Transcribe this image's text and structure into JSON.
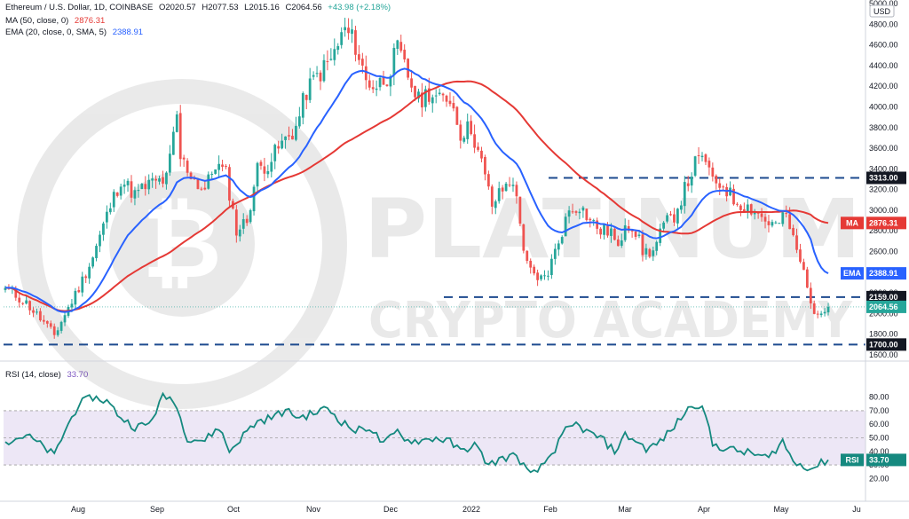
{
  "header": {
    "symbol": "Ethereum / U.S. Dollar, 1D, COINBASE",
    "open": "O2020.57",
    "high": "H2077.53",
    "low": "L2015.16",
    "close": "C2064.56",
    "change": "+43.98 (+2.18%)",
    "ma_label": "MA (50, close, 0)",
    "ma_value": "2876.31",
    "ema_label": "EMA (20, close, 0, SMA, 5)",
    "ema_value": "2388.91",
    "rsi_label": "RSI (14, close)",
    "rsi_value": "33.70",
    "currency": "USD"
  },
  "colors": {
    "up": "#26a69a",
    "down": "#ef5350",
    "ma": "#e53935",
    "ema": "#2962ff",
    "rsi": "#15897f",
    "rsi_band": "#ede7f6",
    "level": "#1e4b8f"
  },
  "watermark": {
    "line1": "PLATINUM",
    "line2": "CRYPTO ACADEMY",
    "logo": "bitcoin-logo"
  },
  "chart_data": {
    "type": "candlestick",
    "timeframe": "1D",
    "x_axis_labels": [
      "Aug",
      "Sep",
      "Oct",
      "Nov",
      "Dec",
      "2022",
      "Feb",
      "Mar",
      "Apr",
      "May",
      "Ju"
    ],
    "price_axis": {
      "ylim": [
        1600,
        5000
      ],
      "ticks": [
        1600,
        1800,
        2000,
        2200,
        2400,
        2600,
        2800,
        3000,
        3200,
        3400,
        3600,
        3800,
        4000,
        4200,
        4400,
        4600,
        4800,
        5000
      ],
      "tick_labels": [
        "1600.00",
        "1800.00",
        "2000.00",
        "2200.00",
        "2400.00",
        "2600.00",
        "2800.00",
        "3000.00",
        "3200.00",
        "3400.00",
        "3600.00",
        "3800.00",
        "4000.00",
        "4200.00",
        "4400.00",
        "4600.00",
        "4800.00",
        "5000.00"
      ]
    },
    "rsi_axis": {
      "ylim": [
        15,
        85
      ],
      "ticks": [
        20,
        30,
        40,
        50,
        60,
        70,
        80
      ],
      "tick_labels": [
        "20.00",
        "30.00",
        "40.00",
        "50.00",
        "60.00",
        "70.00",
        "80.00"
      ],
      "band": [
        30,
        70
      ]
    },
    "levels": [
      {
        "value": 3313,
        "label": "3313.00"
      },
      {
        "value": 2159,
        "label": "2159.00"
      },
      {
        "value": 1700,
        "label": "1700.00"
      }
    ],
    "last_price": {
      "value": 2064.56,
      "label": "2064.56"
    },
    "ma_tag": {
      "name": "MA",
      "value": 2876.31,
      "label": "2876.31"
    },
    "ema_tag": {
      "name": "EMA",
      "value": 2388.91,
      "label": "2388.91"
    },
    "rsi_tag": {
      "name": "RSI",
      "value": 33.7,
      "label": "33.70"
    },
    "price_anchors": [
      [
        0,
        2250
      ],
      [
        6,
        2100
      ],
      [
        10,
        1950
      ],
      [
        14,
        1790
      ],
      [
        17,
        1990
      ],
      [
        21,
        2250
      ],
      [
        25,
        2550
      ],
      [
        29,
        2950
      ],
      [
        33,
        3300
      ],
      [
        37,
        3150
      ],
      [
        41,
        3250
      ],
      [
        46,
        3300
      ],
      [
        49,
        3900
      ],
      [
        50,
        3500
      ],
      [
        55,
        3250
      ],
      [
        57,
        3200
      ],
      [
        60,
        3450
      ],
      [
        63,
        3350
      ],
      [
        66,
        2800
      ],
      [
        69,
        2900
      ],
      [
        72,
        3400
      ],
      [
        75,
        3450
      ],
      [
        78,
        3600
      ],
      [
        83,
        3800
      ],
      [
        86,
        4150
      ],
      [
        89,
        4300
      ],
      [
        93,
        4450
      ],
      [
        97,
        4750
      ],
      [
        100,
        4600
      ],
      [
        103,
        4250
      ],
      [
        106,
        4200
      ],
      [
        109,
        4300
      ],
      [
        112,
        4550
      ],
      [
        115,
        4300
      ],
      [
        118,
        4050
      ],
      [
        121,
        4150
      ],
      [
        124,
        4050
      ],
      [
        127,
        4100
      ],
      [
        130,
        3750
      ],
      [
        133,
        3800
      ],
      [
        136,
        3450
      ],
      [
        139,
        3050
      ],
      [
        142,
        3200
      ],
      [
        145,
        3300
      ],
      [
        148,
        2650
      ],
      [
        150,
        2400
      ],
      [
        152,
        2300
      ],
      [
        155,
        2400
      ],
      [
        158,
        2700
      ],
      [
        161,
        3000
      ],
      [
        164,
        3050
      ],
      [
        167,
        2900
      ],
      [
        170,
        2800
      ],
      [
        173,
        2800
      ],
      [
        175,
        2600
      ],
      [
        177,
        2900
      ],
      [
        180,
        2800
      ],
      [
        182,
        2600
      ],
      [
        185,
        2600
      ],
      [
        188,
        2850
      ],
      [
        191,
        2950
      ],
      [
        194,
        3200
      ],
      [
        197,
        3450
      ],
      [
        200,
        3500
      ],
      [
        202,
        3250
      ],
      [
        205,
        3250
      ],
      [
        208,
        3100
      ],
      [
        211,
        3050
      ],
      [
        214,
        3000
      ],
      [
        217,
        2900
      ],
      [
        220,
        2850
      ],
      [
        223,
        2950
      ],
      [
        226,
        2600
      ],
      [
        229,
        2300
      ],
      [
        231,
        1950
      ],
      [
        233,
        2050
      ],
      [
        235,
        2064.56
      ]
    ],
    "rsi_anchors": [
      [
        0,
        47
      ],
      [
        6,
        52
      ],
      [
        10,
        45
      ],
      [
        14,
        37
      ],
      [
        17,
        55
      ],
      [
        21,
        75
      ],
      [
        25,
        80
      ],
      [
        29,
        77
      ],
      [
        33,
        65
      ],
      [
        37,
        58
      ],
      [
        41,
        60
      ],
      [
        45,
        80
      ],
      [
        48,
        79
      ],
      [
        52,
        50
      ],
      [
        57,
        48
      ],
      [
        61,
        58
      ],
      [
        64,
        40
      ],
      [
        69,
        55
      ],
      [
        72,
        62
      ],
      [
        76,
        65
      ],
      [
        80,
        70
      ],
      [
        84,
        65
      ],
      [
        88,
        68
      ],
      [
        92,
        72
      ],
      [
        96,
        62
      ],
      [
        100,
        55
      ],
      [
        104,
        58
      ],
      [
        108,
        45
      ],
      [
        112,
        55
      ],
      [
        115,
        48
      ],
      [
        119,
        48
      ],
      [
        123,
        50
      ],
      [
        127,
        47
      ],
      [
        130,
        40
      ],
      [
        134,
        45
      ],
      [
        138,
        30
      ],
      [
        142,
        35
      ],
      [
        146,
        37
      ],
      [
        150,
        22
      ],
      [
        153,
        28
      ],
      [
        157,
        42
      ],
      [
        160,
        55
      ],
      [
        163,
        60
      ],
      [
        167,
        53
      ],
      [
        170,
        50
      ],
      [
        174,
        40
      ],
      [
        177,
        52
      ],
      [
        180,
        48
      ],
      [
        183,
        42
      ],
      [
        186,
        45
      ],
      [
        190,
        55
      ],
      [
        193,
        65
      ],
      [
        196,
        74
      ],
      [
        199,
        75
      ],
      [
        202,
        45
      ],
      [
        206,
        42
      ],
      [
        210,
        40
      ],
      [
        214,
        38
      ],
      [
        218,
        35
      ],
      [
        222,
        48
      ],
      [
        225,
        32
      ],
      [
        228,
        30
      ],
      [
        230,
        27
      ],
      [
        232,
        30
      ],
      [
        235,
        33.7
      ]
    ]
  }
}
